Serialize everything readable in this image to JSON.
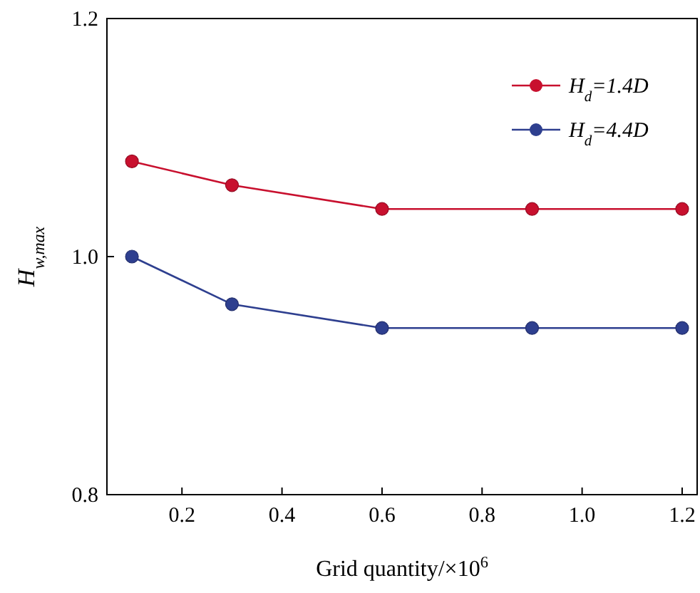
{
  "chart_data": {
    "type": "line",
    "xlabel": "Grid quantity/×10$^{6}$",
    "ylabel": "H$_{w,max}$",
    "x": [
      0.1,
      0.3,
      0.6,
      0.9,
      1.2
    ],
    "series": [
      {
        "name": "H$_{d}$=1.4D",
        "color": "#c8102e",
        "values": [
          1.08,
          1.06,
          1.04,
          1.04,
          1.04
        ]
      },
      {
        "name": "H$_{d}$=4.4D",
        "color": "#2e3f8f",
        "values": [
          1.0,
          0.96,
          0.94,
          0.94,
          0.94
        ]
      }
    ],
    "xlim": [
      0.05,
      1.23
    ],
    "xticks": [
      {
        "value": 0.2,
        "label": "0.2"
      },
      {
        "value": 0.4,
        "label": "0.4"
      },
      {
        "value": 0.6,
        "label": "0.6"
      },
      {
        "value": 0.8,
        "label": "0.8"
      },
      {
        "value": 1.0,
        "label": "1.0"
      },
      {
        "value": 1.2,
        "label": "1.2"
      }
    ],
    "ylim": [
      0.8,
      1.2
    ],
    "yticks": [
      {
        "value": 0.8,
        "label": "0.8"
      },
      {
        "value": 1.0,
        "label": "1.0"
      },
      {
        "value": 1.2,
        "label": "1.2"
      }
    ],
    "legend": "top right",
    "marker": "circle",
    "line_style": "solid",
    "grid": false
  }
}
